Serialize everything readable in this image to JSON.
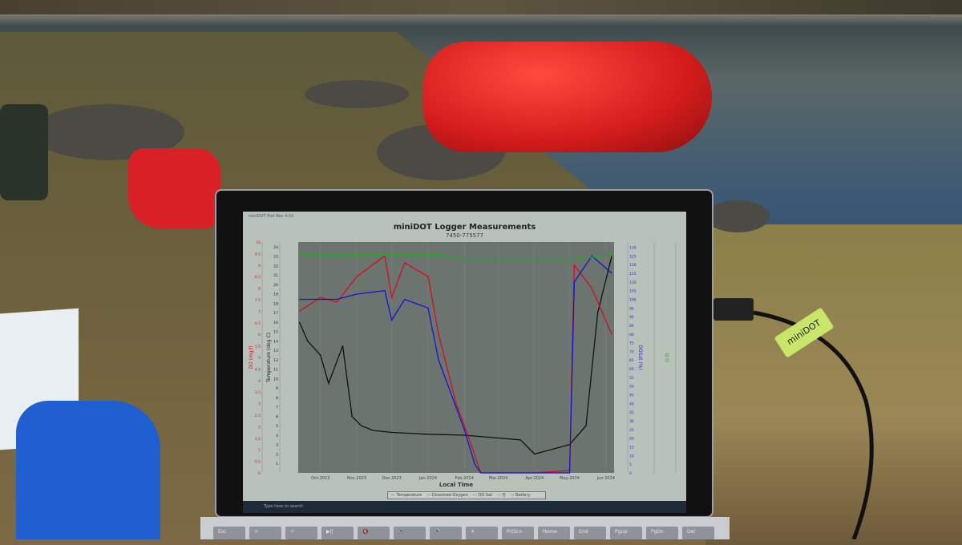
{
  "screen": {
    "window_title": "miniDOT Plot Rev 4.03",
    "taskbar_search_placeholder": "Type here to search"
  },
  "chart_data": {
    "type": "line",
    "title": "miniDOT Logger Measurements",
    "subtitle": "7450-775577",
    "xlabel": "Local Time",
    "x_ticks": [
      "Oct-2023",
      "Nov-2023",
      "Dec-2023",
      "Jan-2024",
      "Feb-2024",
      "Mar-2024",
      "Apr-2024",
      "May-2024",
      "Jun-2024"
    ],
    "xlim": [
      "2023-09-12",
      "2024-06-08"
    ],
    "axes": [
      {
        "label": "DO (mg/l)",
        "ylim": [
          0,
          10
        ],
        "ticks": [
          0,
          0.5,
          1,
          1.5,
          2,
          2.5,
          3,
          3.5,
          4,
          4.5,
          5,
          5.5,
          6,
          6.5,
          7,
          7.5,
          8,
          8.5,
          9,
          9.5,
          10
        ],
        "color": "#c0202a"
      },
      {
        "label": "Temperature (deg C)",
        "ylim": [
          0,
          24.5
        ],
        "ticks": [
          1,
          2,
          3,
          4,
          5,
          6,
          7,
          8,
          9,
          10,
          11,
          12,
          13,
          14,
          15,
          16,
          17,
          18,
          19,
          20,
          21,
          22,
          23,
          24
        ],
        "color": "#222222"
      },
      {
        "label": "DOSat (%)",
        "ylim": [
          0,
          133
        ],
        "ticks": [
          0,
          5,
          10,
          15,
          20,
          25,
          30,
          35,
          40,
          45,
          50,
          55,
          60,
          65,
          70,
          75,
          80,
          85,
          90,
          95,
          100,
          105,
          110,
          115,
          120,
          125,
          130
        ],
        "color": "#2a2ad0"
      },
      {
        "label": "Q ()",
        "ylim": [
          0,
          1.05
        ],
        "color": "#2a9a2a"
      },
      {
        "label": "Battery (volt)",
        "color": "#c08020"
      }
    ],
    "legend": [
      "Temperature",
      "Dissolved Oxygen",
      "DO Sat",
      "Q",
      "Battery"
    ],
    "legend_placement": "bottom",
    "grid": true,
    "series": [
      {
        "name": "Temperature",
        "axis": 1,
        "color": "#111111",
        "points": [
          [
            "2023-09-13",
            16
          ],
          [
            "2023-09-20",
            14
          ],
          [
            "2023-10-01",
            12.5
          ],
          [
            "2023-10-08",
            9.5
          ],
          [
            "2023-10-20",
            13.5
          ],
          [
            "2023-10-28",
            6
          ],
          [
            "2023-11-05",
            5
          ],
          [
            "2023-11-15",
            4.5
          ],
          [
            "2023-12-01",
            4.3
          ],
          [
            "2024-01-01",
            4.1
          ],
          [
            "2024-02-01",
            4
          ],
          [
            "2024-03-01",
            3.7
          ],
          [
            "2024-03-20",
            3.5
          ],
          [
            "2024-04-01",
            2
          ],
          [
            "2024-05-01",
            3
          ],
          [
            "2024-05-15",
            5
          ],
          [
            "2024-05-25",
            17
          ],
          [
            "2024-06-06",
            23
          ]
        ]
      },
      {
        "name": "Dissolved Oxygen",
        "axis": 0,
        "color": "#d01020",
        "points": [
          [
            "2023-09-13",
            7
          ],
          [
            "2023-10-01",
            7.6
          ],
          [
            "2023-10-15",
            7.4
          ],
          [
            "2023-11-01",
            8.5
          ],
          [
            "2023-11-25",
            9.4
          ],
          [
            "2023-12-01",
            7.6
          ],
          [
            "2023-12-12",
            9.1
          ],
          [
            "2024-01-01",
            8.5
          ],
          [
            "2024-01-10",
            6
          ],
          [
            "2024-01-25",
            3
          ],
          [
            "2024-02-05",
            1.5
          ],
          [
            "2024-02-15",
            0
          ],
          [
            "2024-04-01",
            0
          ],
          [
            "2024-05-01",
            0.1
          ],
          [
            "2024-05-05",
            9
          ],
          [
            "2024-05-20",
            8
          ],
          [
            "2024-06-06",
            6
          ]
        ]
      },
      {
        "name": "DO Sat",
        "axis": 2,
        "color": "#1515d0",
        "points": [
          [
            "2023-09-13",
            100
          ],
          [
            "2023-10-15",
            100
          ],
          [
            "2023-11-01",
            103
          ],
          [
            "2023-11-25",
            105
          ],
          [
            "2023-12-01",
            88
          ],
          [
            "2023-12-12",
            100
          ],
          [
            "2024-01-01",
            95
          ],
          [
            "2024-01-10",
            65
          ],
          [
            "2024-02-01",
            25
          ],
          [
            "2024-02-10",
            5
          ],
          [
            "2024-02-15",
            0
          ],
          [
            "2024-04-01",
            0
          ],
          [
            "2024-05-01",
            0
          ],
          [
            "2024-05-05",
            110
          ],
          [
            "2024-05-20",
            125
          ],
          [
            "2024-06-06",
            115
          ]
        ]
      },
      {
        "name": "Q",
        "axis": 3,
        "color": "#22aa22",
        "points": [
          [
            "2023-09-13",
            0.99
          ],
          [
            "2024-01-15",
            0.99
          ],
          [
            "2024-02-01",
            0.97
          ],
          [
            "2024-05-01",
            0.97
          ],
          [
            "2024-06-06",
            0.99
          ]
        ]
      }
    ]
  },
  "keyboard": {
    "keys": [
      "Esc",
      "☼",
      "☼",
      "▶||",
      "🔇",
      "🔉",
      "🔊",
      "☀",
      "PrtScn",
      "Home",
      "End",
      "PgUp",
      "PgDn",
      "Del"
    ]
  },
  "tag_label": "miniDOT"
}
